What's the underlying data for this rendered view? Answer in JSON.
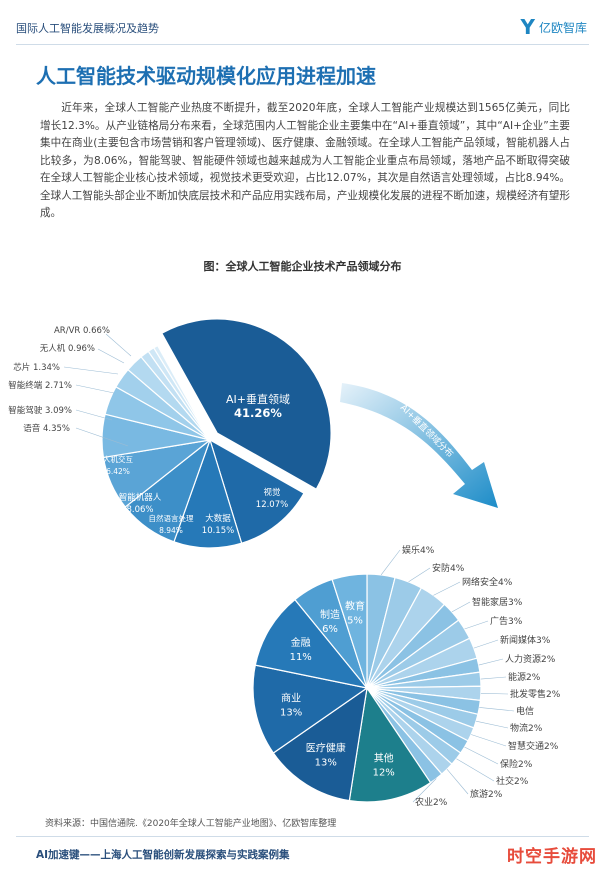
{
  "header": {
    "title": "国际人工智能发展概况及趋势",
    "logo_text": "亿欧智库"
  },
  "heading": "人工智能技术驱动规模化应用进程加速",
  "paragraph": "近年来，全球人工智能产业热度不断提升，截至2020年底，全球人工智能产业规模达到1565亿美元，同比增长12.3%。从产业链格局分布来看，全球范围内人工智能企业主要集中在“AI+垂直领域”，其中“AI+企业”主要集中在商业(主要包含市场营销和客户管理领域)、医疗健康、金融领域。在全球人工智能产品领域，智能机器人占比较多，为8.06%，智能驾驶、智能硬件领域也越来越成为人工智能企业重点布局领域，落地产品不断取得突破在全球人工智能企业核心技术领域，视觉技术更受欢迎，占比12.07%，其次是自然语言处理领域，占比8.94%。全球人工智能头部企业不断加快底层技术和产品应用实践布局，产业规模化发展的进程不断加速，规模经济有望形成。",
  "figure_title": "图：全球人工智能企业技术产品领域分布",
  "arrow_label": "AI+垂直领域分布",
  "source": "资料来源：中国信通院.《2020年全球人工智能产业地图》、亿欧智库整理",
  "footer": "AI加速键——上海人工智能创新发展探索与实践案例集",
  "watermark": "时空手游网",
  "colors": {
    "brand": "#1d6fb2",
    "dark": "#1a5c96",
    "light": "#a9d3ee"
  },
  "chart_data": [
    {
      "type": "pie",
      "title": "全球人工智能企业技术产品领域分布",
      "slices": [
        {
          "label": "AI+垂直领域",
          "value": 41.26,
          "text": "41.26%"
        },
        {
          "label": "视觉",
          "value": 12.07,
          "text": "12.07%"
        },
        {
          "label": "大数据",
          "value": 10.15,
          "text": "10.15%"
        },
        {
          "label": "自然语言处理",
          "value": 8.94,
          "text": "8.94%"
        },
        {
          "label": "智能机器人",
          "value": 8.06,
          "text": "8.06%"
        },
        {
          "label": "人机交互",
          "value": 6.42,
          "text": "6.42%"
        },
        {
          "label": "语音",
          "value": 4.35,
          "text": "4.35%"
        },
        {
          "label": "智能驾驶",
          "value": 3.09,
          "text": "3.09%"
        },
        {
          "label": "智能终端",
          "value": 2.71,
          "text": "2.71%"
        },
        {
          "label": "芯片",
          "value": 1.34,
          "text": "1.34%"
        },
        {
          "label": "无人机",
          "value": 0.96,
          "text": "0.96%"
        },
        {
          "label": "AR/VR",
          "value": 0.66,
          "text": "0.66%"
        }
      ]
    },
    {
      "type": "pie",
      "title": "AI+垂直领域分布",
      "slices": [
        {
          "label": "娱乐",
          "value": 4,
          "text": "4%"
        },
        {
          "label": "安防",
          "value": 4,
          "text": "4%"
        },
        {
          "label": "网络安全",
          "value": 4,
          "text": "4%"
        },
        {
          "label": "智能家居",
          "value": 3,
          "text": "3%"
        },
        {
          "label": "广告",
          "value": 3,
          "text": "3%"
        },
        {
          "label": "新闻媒体",
          "value": 3,
          "text": "3%"
        },
        {
          "label": "人力资源",
          "value": 2,
          "text": "2%"
        },
        {
          "label": "能源",
          "value": 2,
          "text": "2%"
        },
        {
          "label": "批发零售",
          "value": 2,
          "text": "2%"
        },
        {
          "label": "电信",
          "value": 2,
          "text": ""
        },
        {
          "label": "物流",
          "value": 2,
          "text": "2%"
        },
        {
          "label": "智慧交通",
          "value": 2,
          "text": "2%"
        },
        {
          "label": "保险",
          "value": 2,
          "text": "2%"
        },
        {
          "label": "社交",
          "value": 2,
          "text": "2%"
        },
        {
          "label": "旅游",
          "value": 2,
          "text": "2%"
        },
        {
          "label": "农业",
          "value": 2,
          "text": "2%"
        },
        {
          "label": "其他",
          "value": 12,
          "text": "12%"
        },
        {
          "label": "医疗健康",
          "value": 13,
          "text": "13%"
        },
        {
          "label": "商业",
          "value": 13,
          "text": "13%"
        },
        {
          "label": "金融",
          "value": 11,
          "text": "11%"
        },
        {
          "label": "制造",
          "value": 6,
          "text": "6%"
        },
        {
          "label": "教育",
          "value": 5,
          "text": "5%"
        }
      ]
    }
  ]
}
